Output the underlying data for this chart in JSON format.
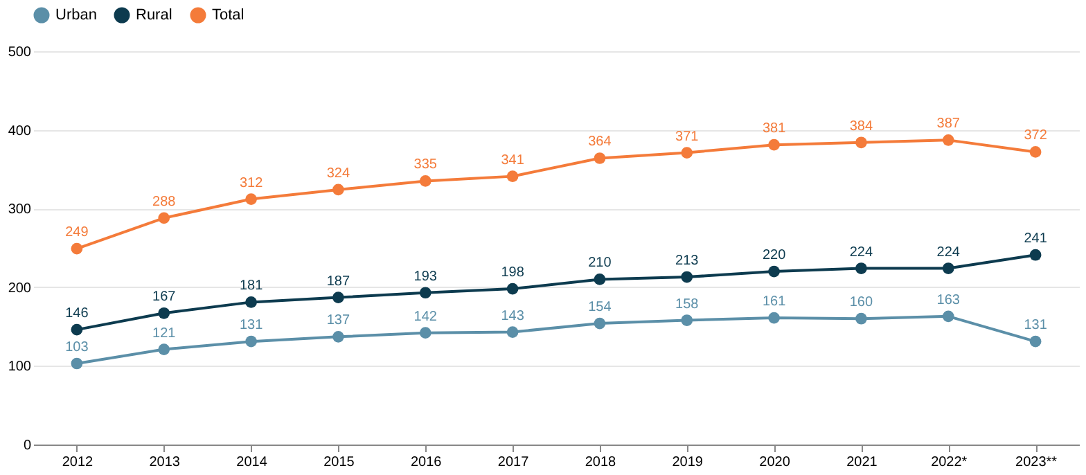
{
  "chart_data": {
    "type": "line",
    "categories": [
      "2012",
      "2013",
      "2014",
      "2015",
      "2016",
      "2017",
      "2018",
      "2019",
      "2020",
      "2021",
      "2022*",
      "2023**"
    ],
    "series": [
      {
        "name": "Urban",
        "color": "#5b8fa8",
        "values": [
          103,
          121,
          131,
          137,
          142,
          143,
          154,
          158,
          161,
          160,
          163,
          131
        ]
      },
      {
        "name": "Rural",
        "color": "#0d3b4f",
        "values": [
          146,
          167,
          181,
          187,
          193,
          198,
          210,
          213,
          220,
          224,
          224,
          241
        ]
      },
      {
        "name": "Total",
        "color": "#f47b3a",
        "values": [
          249,
          288,
          312,
          324,
          335,
          341,
          364,
          371,
          381,
          384,
          387,
          372
        ]
      }
    ],
    "ylim": [
      0,
      500
    ],
    "yticks": [
      0,
      100,
      200,
      300,
      400,
      500
    ],
    "grid": "y",
    "legend": "top",
    "marker": "circle",
    "line_style": "solid",
    "data_labels": true
  }
}
